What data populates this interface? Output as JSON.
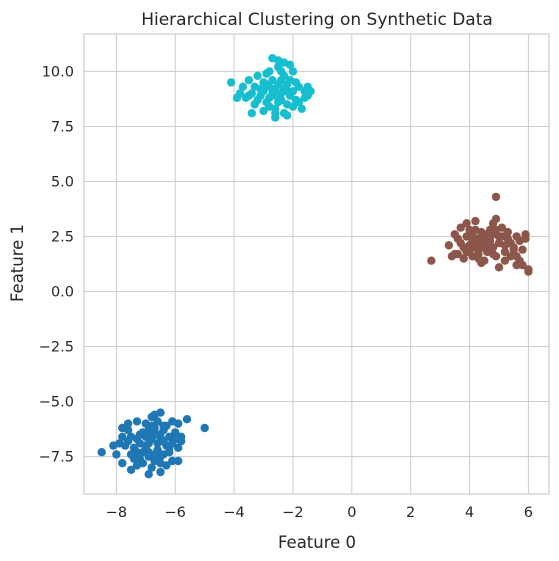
{
  "chart_data": {
    "type": "scatter",
    "title": "Hierarchical Clustering on Synthetic Data",
    "xlabel": "Feature 0",
    "ylabel": "Feature 1",
    "xlim": [
      -9.1,
      6.7
    ],
    "ylim": [
      -9.2,
      11.7
    ],
    "xticks": [
      -8,
      -6,
      -4,
      -2,
      0,
      2,
      4,
      6
    ],
    "xtick_labels": [
      "−8",
      "−6",
      "−4",
      "−2",
      "0",
      "2",
      "4",
      "6"
    ],
    "yticks": [
      -7.5,
      -5.0,
      -2.5,
      0.0,
      2.5,
      5.0,
      7.5,
      10.0
    ],
    "ytick_labels": [
      "−7.5",
      "−5.0",
      "−2.5",
      "0.0",
      "2.5",
      "5.0",
      "7.5",
      "10.0"
    ],
    "grid": true,
    "series": [
      {
        "color": "#1f77b4",
        "points": [
          [
            -7.0,
            -7.0
          ],
          [
            -6.8,
            -6.7
          ],
          [
            -6.6,
            -7.2
          ],
          [
            -7.2,
            -6.9
          ],
          [
            -6.9,
            -7.5
          ],
          [
            -6.5,
            -6.6
          ],
          [
            -7.3,
            -7.3
          ],
          [
            -6.7,
            -6.2
          ],
          [
            -6.3,
            -7.0
          ],
          [
            -7.5,
            -6.6
          ],
          [
            -6.9,
            -6.3
          ],
          [
            -6.4,
            -7.4
          ],
          [
            -7.1,
            -7.8
          ],
          [
            -6.6,
            -5.9
          ],
          [
            -6.2,
            -6.6
          ],
          [
            -7.4,
            -7.1
          ],
          [
            -6.8,
            -8.0
          ],
          [
            -6.1,
            -6.9
          ],
          [
            -7.6,
            -6.3
          ],
          [
            -6.5,
            -7.8
          ],
          [
            -7.7,
            -7.0
          ],
          [
            -6.0,
            -6.4
          ],
          [
            -7.0,
            -6.0
          ],
          [
            -6.3,
            -6.1
          ],
          [
            -7.8,
            -6.6
          ],
          [
            -5.9,
            -7.1
          ],
          [
            -6.7,
            -5.6
          ],
          [
            -7.2,
            -7.6
          ],
          [
            -5.8,
            -6.6
          ],
          [
            -6.9,
            -6.9
          ],
          [
            -6.4,
            -6.8
          ],
          [
            -7.3,
            -6.7
          ],
          [
            -6.6,
            -6.5
          ],
          [
            -6.9,
            -7.3
          ],
          [
            -6.2,
            -7.3
          ],
          [
            -7.5,
            -7.4
          ],
          [
            -6.8,
            -6.1
          ],
          [
            -7.1,
            -6.4
          ],
          [
            -6.4,
            -6.3
          ],
          [
            -6.7,
            -7.4
          ],
          [
            -5.9,
            -6.0
          ],
          [
            -5.6,
            -5.8
          ],
          [
            -5.0,
            -6.2
          ],
          [
            -5.8,
            -6.8
          ],
          [
            -6.1,
            -5.9
          ],
          [
            -6.5,
            -5.5
          ],
          [
            -6.8,
            -5.7
          ],
          [
            -7.3,
            -5.9
          ],
          [
            -7.6,
            -6.0
          ],
          [
            -7.8,
            -6.2
          ],
          [
            -7.9,
            -6.9
          ],
          [
            -8.1,
            -7.0
          ],
          [
            -8.0,
            -7.4
          ],
          [
            -8.5,
            -7.3
          ],
          [
            -7.8,
            -7.8
          ],
          [
            -7.5,
            -8.1
          ],
          [
            -7.3,
            -7.9
          ],
          [
            -6.9,
            -8.3
          ],
          [
            -6.5,
            -8.2
          ],
          [
            -6.3,
            -7.9
          ],
          [
            -6.1,
            -7.7
          ],
          [
            -5.9,
            -7.7
          ],
          [
            -7.0,
            -7.1
          ],
          [
            -6.6,
            -6.9
          ],
          [
            -7.2,
            -6.5
          ],
          [
            -6.2,
            -7.1
          ],
          [
            -7.4,
            -7.6
          ],
          [
            -6.5,
            -7.5
          ],
          [
            -7.1,
            -7.3
          ],
          [
            -6.8,
            -6.4
          ],
          [
            -6.0,
            -6.7
          ],
          [
            -7.6,
            -6.8
          ],
          [
            -6.7,
            -7.7
          ],
          [
            -6.4,
            -6.1
          ],
          [
            -7.0,
            -6.6
          ]
        ]
      },
      {
        "color": "#17becf",
        "points": [
          [
            -2.6,
            9.2
          ],
          [
            -2.4,
            9.0
          ],
          [
            -2.8,
            8.8
          ],
          [
            -2.2,
            9.4
          ],
          [
            -3.0,
            9.1
          ],
          [
            -2.5,
            8.6
          ],
          [
            -2.7,
            9.6
          ],
          [
            -2.1,
            8.9
          ],
          [
            -3.2,
            8.7
          ],
          [
            -2.3,
            9.8
          ],
          [
            -2.9,
            9.4
          ],
          [
            -2.0,
            9.1
          ],
          [
            -3.1,
            9.2
          ],
          [
            -2.6,
            8.3
          ],
          [
            -2.4,
            9.6
          ],
          [
            -1.8,
            9.3
          ],
          [
            -3.4,
            9.0
          ],
          [
            -2.2,
            8.5
          ],
          [
            -2.8,
            10.0
          ],
          [
            -1.9,
            8.7
          ],
          [
            -3.3,
            8.5
          ],
          [
            -2.5,
            10.2
          ],
          [
            -1.6,
            9.1
          ],
          [
            -3.6,
            8.8
          ],
          [
            -2.0,
            10.0
          ],
          [
            -3.0,
            8.2
          ],
          [
            -1.5,
            9.3
          ],
          [
            -3.8,
            9.0
          ],
          [
            -2.3,
            8.1
          ],
          [
            -2.7,
            10.6
          ],
          [
            -2.6,
            7.9
          ],
          [
            -1.7,
            8.3
          ],
          [
            -3.5,
            9.6
          ],
          [
            -2.1,
            10.3
          ],
          [
            -3.9,
            8.8
          ],
          [
            -1.4,
            9.1
          ],
          [
            -4.1,
            9.5
          ],
          [
            -3.4,
            8.1
          ],
          [
            -2.5,
            10.5
          ],
          [
            -2.8,
            9.3
          ],
          [
            -2.3,
            9.2
          ],
          [
            -2.6,
            8.9
          ],
          [
            -3.0,
            9.5
          ],
          [
            -2.4,
            8.7
          ],
          [
            -2.1,
            9.6
          ],
          [
            -2.9,
            8.6
          ],
          [
            -2.7,
            9.0
          ],
          [
            -2.2,
            9.1
          ],
          [
            -3.1,
            8.9
          ],
          [
            -2.5,
            9.4
          ],
          [
            -2.0,
            8.4
          ],
          [
            -3.3,
            9.3
          ],
          [
            -1.9,
            9.5
          ],
          [
            -2.8,
            8.4
          ],
          [
            -3.5,
            8.9
          ],
          [
            -1.8,
            8.6
          ],
          [
            -2.4,
            10.0
          ],
          [
            -3.7,
            9.3
          ],
          [
            -2.2,
            8.0
          ],
          [
            -2.6,
            8.1
          ],
          [
            -2.3,
            10.4
          ],
          [
            -1.6,
            8.8
          ],
          [
            -3.2,
            9.8
          ],
          [
            -2.9,
            9.9
          ],
          [
            -1.5,
            8.9
          ]
        ]
      },
      {
        "color": "#8c564b",
        "points": [
          [
            4.5,
            2.2
          ],
          [
            4.8,
            2.0
          ],
          [
            4.3,
            2.4
          ],
          [
            5.0,
            2.5
          ],
          [
            4.6,
            1.8
          ],
          [
            4.2,
            2.0
          ],
          [
            5.2,
            2.1
          ],
          [
            4.4,
            2.7
          ],
          [
            4.9,
            1.6
          ],
          [
            4.1,
            2.3
          ],
          [
            5.3,
            2.4
          ],
          [
            4.7,
            2.8
          ],
          [
            4.0,
            1.8
          ],
          [
            5.5,
            2.0
          ],
          [
            4.3,
            1.5
          ],
          [
            5.1,
            2.9
          ],
          [
            3.9,
            2.5
          ],
          [
            4.6,
            2.4
          ],
          [
            5.7,
            2.3
          ],
          [
            3.8,
            2.0
          ],
          [
            4.8,
            3.1
          ],
          [
            5.4,
            1.6
          ],
          [
            3.6,
            2.4
          ],
          [
            4.4,
            1.3
          ],
          [
            5.9,
            2.6
          ],
          [
            3.5,
            1.7
          ],
          [
            4.9,
            3.3
          ],
          [
            5.6,
            1.2
          ],
          [
            3.7,
            2.9
          ],
          [
            4.2,
            3.2
          ],
          [
            6.0,
            1.0
          ],
          [
            3.3,
            2.1
          ],
          [
            5.8,
            1.9
          ],
          [
            4.0,
            2.8
          ],
          [
            5.0,
            1.1
          ],
          [
            3.4,
            1.6
          ],
          [
            6.0,
            0.9
          ],
          [
            3.9,
            3.1
          ],
          [
            4.9,
            4.3
          ],
          [
            2.7,
            1.4
          ],
          [
            4.5,
            2.5
          ],
          [
            4.7,
            2.1
          ],
          [
            4.3,
            1.9
          ],
          [
            5.0,
            2.2
          ],
          [
            4.6,
            2.6
          ],
          [
            4.2,
            2.2
          ],
          [
            5.2,
            1.8
          ],
          [
            4.4,
            2.0
          ],
          [
            4.8,
            1.7
          ],
          [
            4.1,
            2.6
          ],
          [
            5.3,
            2.7
          ],
          [
            4.7,
            2.3
          ],
          [
            4.0,
            2.1
          ],
          [
            5.5,
            1.9
          ],
          [
            4.5,
            1.4
          ],
          [
            5.1,
            2.5
          ],
          [
            3.9,
            1.8
          ],
          [
            4.6,
            2.0
          ],
          [
            5.7,
            1.4
          ],
          [
            3.7,
            2.2
          ],
          [
            4.8,
            2.6
          ],
          [
            5.4,
            2.2
          ],
          [
            3.6,
            1.7
          ],
          [
            4.4,
            2.3
          ],
          [
            5.9,
            2.4
          ],
          [
            3.5,
            2.6
          ],
          [
            4.9,
            2.8
          ],
          [
            5.6,
            1.6
          ],
          [
            3.8,
            1.5
          ],
          [
            4.2,
            2.8
          ],
          [
            5.8,
            1.2
          ],
          [
            4.3,
            1.7
          ],
          [
            5.6,
            2.5
          ],
          [
            4.1,
            1.6
          ],
          [
            5.2,
            1.4
          ]
        ]
      }
    ]
  }
}
